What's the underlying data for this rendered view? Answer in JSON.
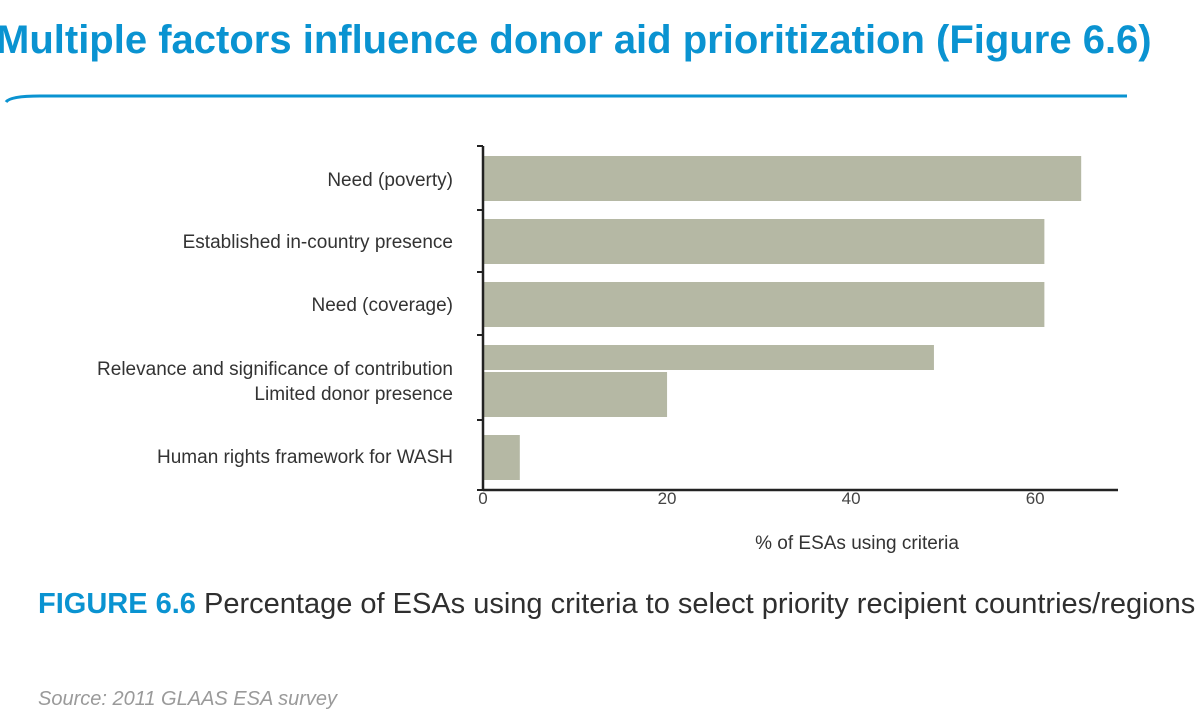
{
  "page": {
    "title": "Multiple factors influence donor aid prioritization (Figure 6.6)",
    "accent_color": "#0a93d1"
  },
  "chart_data": {
    "type": "bar",
    "orientation": "horizontal",
    "categories": [
      "Need (poverty)",
      "Established in-country presence",
      "Need (coverage)",
      "Relevance and significance of contribution",
      "Limited donor presence",
      "Human rights framework for WASH"
    ],
    "values": [
      65,
      61,
      61,
      49,
      20,
      4
    ],
    "xlabel": "% of ESAs using criteria",
    "xticks": [
      "0",
      "20",
      "40",
      "60"
    ],
    "xlim": [
      0,
      69
    ],
    "bar_color": "#b5b8a4",
    "grid": false
  },
  "caption": {
    "label": "FIGURE 6.6",
    "text": "Percentage of ESAs using criteria to select priority recipient countries/regions"
  },
  "source": "Source: 2011 GLAAS ESA survey"
}
